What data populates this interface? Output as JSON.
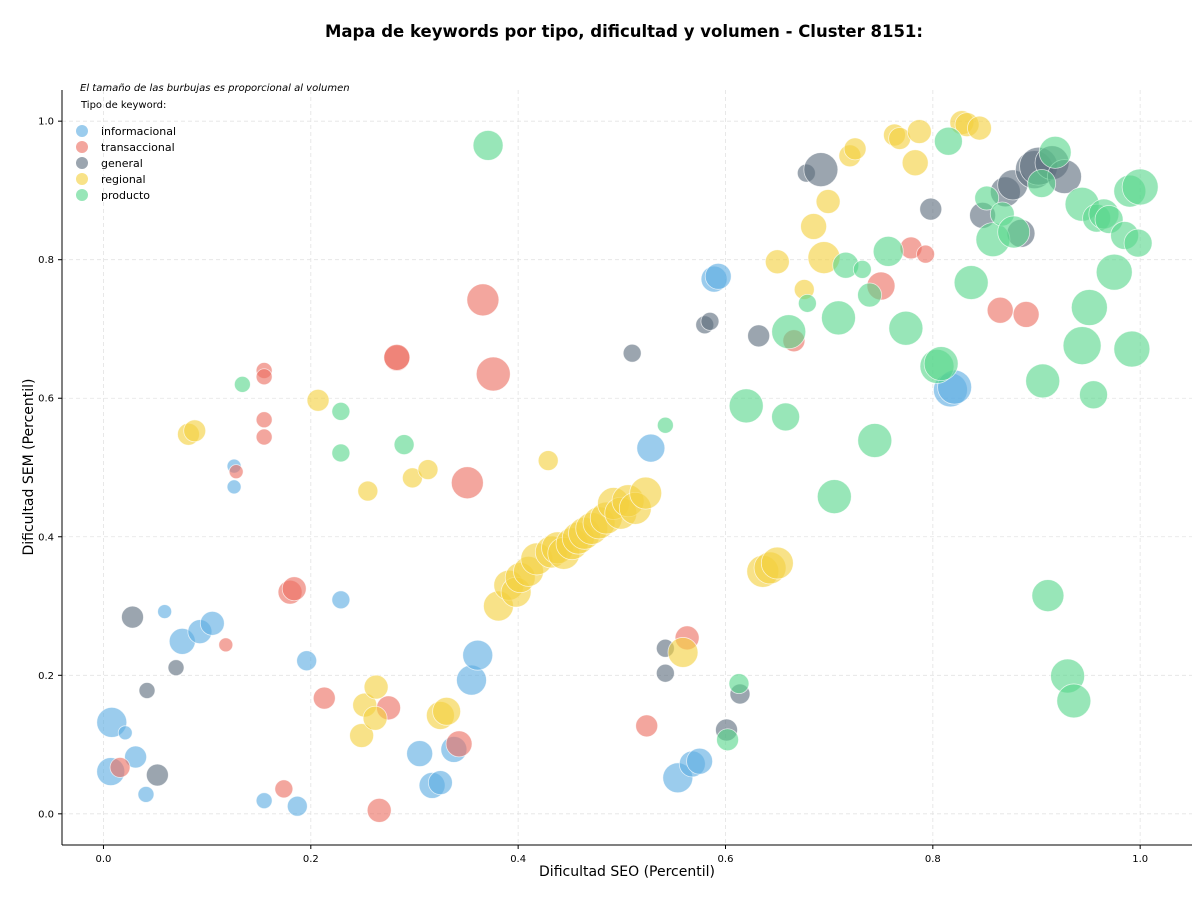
{
  "chart_data": {
    "type": "scatter",
    "title": "Mapa de keywords por tipo, dificultad y volumen - Cluster 8151:",
    "xlabel": "Dificultad SEO (Percentil)",
    "ylabel": "Dificultad SEM (Percentil)",
    "xlim": [
      -0.04,
      1.05
    ],
    "ylim": [
      -0.045,
      1.045
    ],
    "xticks": [
      0.0,
      0.2,
      0.4,
      0.6,
      0.8,
      1.0
    ],
    "yticks": [
      0.0,
      0.2,
      0.4,
      0.6,
      0.8,
      1.0
    ],
    "xtick_labels": [
      "0.0",
      "0.2",
      "0.4",
      "0.6",
      "0.8",
      "1.0"
    ],
    "ytick_labels": [
      "0.0",
      "0.2",
      "0.4",
      "0.6",
      "0.8",
      "1.0"
    ],
    "grid": true,
    "legend": {
      "placement": "top-left",
      "note": "El tamaño de las burbujas es proporcional al volumen",
      "title": "Tipo de keyword:"
    },
    "series": [
      {
        "name": "informacional",
        "color": "#5dade2",
        "points": [
          [
            0.008,
            0.132,
            15
          ],
          [
            0.007,
            0.061,
            14
          ],
          [
            0.021,
            0.117,
            7
          ],
          [
            0.031,
            0.082,
            11
          ],
          [
            0.041,
            0.028,
            8
          ],
          [
            0.059,
            0.292,
            7
          ],
          [
            0.076,
            0.249,
            13
          ],
          [
            0.093,
            0.263,
            12
          ],
          [
            0.105,
            0.275,
            12
          ],
          [
            0.126,
            0.502,
            7
          ],
          [
            0.126,
            0.472,
            7
          ],
          [
            0.155,
            0.019,
            8
          ],
          [
            0.187,
            0.011,
            10
          ],
          [
            0.196,
            0.221,
            10
          ],
          [
            0.229,
            0.309,
            9
          ],
          [
            0.305,
            0.087,
            13
          ],
          [
            0.317,
            0.041,
            13
          ],
          [
            0.325,
            0.045,
            12
          ],
          [
            0.338,
            0.093,
            13
          ],
          [
            0.355,
            0.193,
            15
          ],
          [
            0.361,
            0.229,
            15
          ],
          [
            0.528,
            0.528,
            14
          ],
          [
            0.554,
            0.052,
            15
          ],
          [
            0.568,
            0.072,
            13
          ],
          [
            0.575,
            0.076,
            13
          ],
          [
            0.589,
            0.772,
            13
          ],
          [
            0.593,
            0.776,
            13
          ],
          [
            0.817,
            0.612,
            17
          ],
          [
            0.821,
            0.616,
            17
          ]
        ]
      },
      {
        "name": "transaccional",
        "color": "#ec7063",
        "points": [
          [
            0.016,
            0.067,
            10
          ],
          [
            0.118,
            0.244,
            7
          ],
          [
            0.128,
            0.494,
            7
          ],
          [
            0.155,
            0.64,
            8
          ],
          [
            0.155,
            0.631,
            8
          ],
          [
            0.155,
            0.569,
            8
          ],
          [
            0.155,
            0.544,
            8
          ],
          [
            0.174,
            0.036,
            9
          ],
          [
            0.18,
            0.32,
            12
          ],
          [
            0.184,
            0.325,
            12
          ],
          [
            0.213,
            0.167,
            11
          ],
          [
            0.266,
            0.005,
            12
          ],
          [
            0.275,
            0.153,
            12
          ],
          [
            0.283,
            0.658,
            13
          ],
          [
            0.283,
            0.659,
            13
          ],
          [
            0.343,
            0.101,
            13
          ],
          [
            0.351,
            0.478,
            16
          ],
          [
            0.366,
            0.742,
            16
          ],
          [
            0.376,
            0.635,
            17
          ],
          [
            0.524,
            0.127,
            11
          ],
          [
            0.563,
            0.254,
            12
          ],
          [
            0.666,
            0.683,
            11
          ],
          [
            0.75,
            0.762,
            14
          ],
          [
            0.779,
            0.817,
            11
          ],
          [
            0.793,
            0.808,
            9
          ],
          [
            0.865,
            0.727,
            13
          ],
          [
            0.89,
            0.721,
            13
          ]
        ]
      },
      {
        "name": "general",
        "color": "#5d6d7e",
        "points": [
          [
            0.028,
            0.284,
            11
          ],
          [
            0.042,
            0.178,
            8
          ],
          [
            0.052,
            0.056,
            11
          ],
          [
            0.07,
            0.211,
            8
          ],
          [
            0.51,
            0.665,
            9
          ],
          [
            0.542,
            0.239,
            9
          ],
          [
            0.542,
            0.203,
            9
          ],
          [
            0.58,
            0.706,
            9
          ],
          [
            0.585,
            0.711,
            9
          ],
          [
            0.601,
            0.121,
            11
          ],
          [
            0.614,
            0.173,
            10
          ],
          [
            0.632,
            0.69,
            11
          ],
          [
            0.678,
            0.925,
            9
          ],
          [
            0.692,
            0.93,
            17
          ],
          [
            0.798,
            0.873,
            11
          ],
          [
            0.848,
            0.864,
            13
          ],
          [
            0.87,
            0.898,
            15
          ],
          [
            0.877,
            0.908,
            15
          ],
          [
            0.885,
            0.838,
            14
          ],
          [
            0.898,
            0.93,
            19
          ],
          [
            0.902,
            0.935,
            19
          ],
          [
            0.915,
            0.94,
            17
          ],
          [
            0.927,
            0.92,
            17
          ]
        ]
      },
      {
        "name": "regional",
        "color": "#f4d03f",
        "points": [
          [
            0.082,
            0.548,
            11
          ],
          [
            0.088,
            0.553,
            11
          ],
          [
            0.207,
            0.597,
            11
          ],
          [
            0.249,
            0.113,
            12
          ],
          [
            0.252,
            0.157,
            12
          ],
          [
            0.255,
            0.466,
            10
          ],
          [
            0.262,
            0.138,
            12
          ],
          [
            0.263,
            0.183,
            12
          ],
          [
            0.298,
            0.485,
            10
          ],
          [
            0.313,
            0.497,
            10
          ],
          [
            0.325,
            0.142,
            14
          ],
          [
            0.331,
            0.148,
            14
          ],
          [
            0.381,
            0.3,
            15
          ],
          [
            0.391,
            0.33,
            15
          ],
          [
            0.398,
            0.32,
            15
          ],
          [
            0.402,
            0.341,
            15
          ],
          [
            0.41,
            0.35,
            15
          ],
          [
            0.418,
            0.368,
            16
          ],
          [
            0.429,
            0.51,
            10
          ],
          [
            0.432,
            0.378,
            16
          ],
          [
            0.438,
            0.384,
            16
          ],
          [
            0.444,
            0.376,
            16
          ],
          [
            0.452,
            0.39,
            16
          ],
          [
            0.458,
            0.398,
            16
          ],
          [
            0.464,
            0.405,
            16
          ],
          [
            0.471,
            0.412,
            16
          ],
          [
            0.478,
            0.42,
            16
          ],
          [
            0.485,
            0.427,
            16
          ],
          [
            0.492,
            0.448,
            16
          ],
          [
            0.499,
            0.434,
            16
          ],
          [
            0.506,
            0.452,
            16
          ],
          [
            0.513,
            0.441,
            16
          ],
          [
            0.523,
            0.463,
            16
          ],
          [
            0.559,
            0.233,
            15
          ],
          [
            0.636,
            0.35,
            16
          ],
          [
            0.643,
            0.355,
            16
          ],
          [
            0.65,
            0.362,
            16
          ],
          [
            0.65,
            0.797,
            12
          ],
          [
            0.676,
            0.757,
            10
          ],
          [
            0.685,
            0.848,
            13
          ],
          [
            0.695,
            0.803,
            16
          ],
          [
            0.699,
            0.884,
            12
          ],
          [
            0.72,
            0.95,
            11
          ],
          [
            0.725,
            0.96,
            11
          ],
          [
            0.763,
            0.98,
            11
          ],
          [
            0.768,
            0.975,
            11
          ],
          [
            0.783,
            0.94,
            13
          ],
          [
            0.787,
            0.985,
            12
          ],
          [
            0.828,
            0.998,
            12
          ],
          [
            0.833,
            0.995,
            12
          ],
          [
            0.845,
            0.99,
            12
          ]
        ]
      },
      {
        "name": "producto",
        "color": "#58d68d",
        "points": [
          [
            0.134,
            0.62,
            8
          ],
          [
            0.229,
            0.581,
            9
          ],
          [
            0.229,
            0.521,
            9
          ],
          [
            0.29,
            0.533,
            10
          ],
          [
            0.371,
            0.965,
            15
          ],
          [
            0.542,
            0.561,
            8
          ],
          [
            0.602,
            0.107,
            11
          ],
          [
            0.613,
            0.188,
            10
          ],
          [
            0.62,
            0.589,
            17
          ],
          [
            0.658,
            0.573,
            14
          ],
          [
            0.661,
            0.696,
            17
          ],
          [
            0.679,
            0.737,
            9
          ],
          [
            0.705,
            0.458,
            17
          ],
          [
            0.709,
            0.716,
            17
          ],
          [
            0.716,
            0.792,
            13
          ],
          [
            0.732,
            0.786,
            9
          ],
          [
            0.739,
            0.749,
            12
          ],
          [
            0.744,
            0.539,
            17
          ],
          [
            0.757,
            0.812,
            15
          ],
          [
            0.774,
            0.701,
            17
          ],
          [
            0.804,
            0.646,
            17
          ],
          [
            0.808,
            0.65,
            17
          ],
          [
            0.815,
            0.971,
            14
          ],
          [
            0.837,
            0.767,
            17
          ],
          [
            0.852,
            0.889,
            12
          ],
          [
            0.858,
            0.829,
            17
          ],
          [
            0.867,
            0.866,
            12
          ],
          [
            0.878,
            0.84,
            16
          ],
          [
            0.905,
            0.91,
            14
          ],
          [
            0.906,
            0.625,
            17
          ],
          [
            0.911,
            0.315,
            16
          ],
          [
            0.918,
            0.955,
            16
          ],
          [
            0.93,
            0.199,
            17
          ],
          [
            0.936,
            0.163,
            17
          ],
          [
            0.944,
            0.88,
            17
          ],
          [
            0.944,
            0.676,
            19
          ],
          [
            0.951,
            0.731,
            18
          ],
          [
            0.955,
            0.605,
            14
          ],
          [
            0.958,
            0.86,
            14
          ],
          [
            0.965,
            0.866,
            15
          ],
          [
            0.97,
            0.858,
            14
          ],
          [
            0.975,
            0.782,
            18
          ],
          [
            0.985,
            0.835,
            14
          ],
          [
            0.99,
            0.899,
            16
          ],
          [
            0.992,
            0.671,
            18
          ],
          [
            0.998,
            0.824,
            14
          ],
          [
            1.0,
            0.905,
            18
          ]
        ]
      }
    ]
  }
}
